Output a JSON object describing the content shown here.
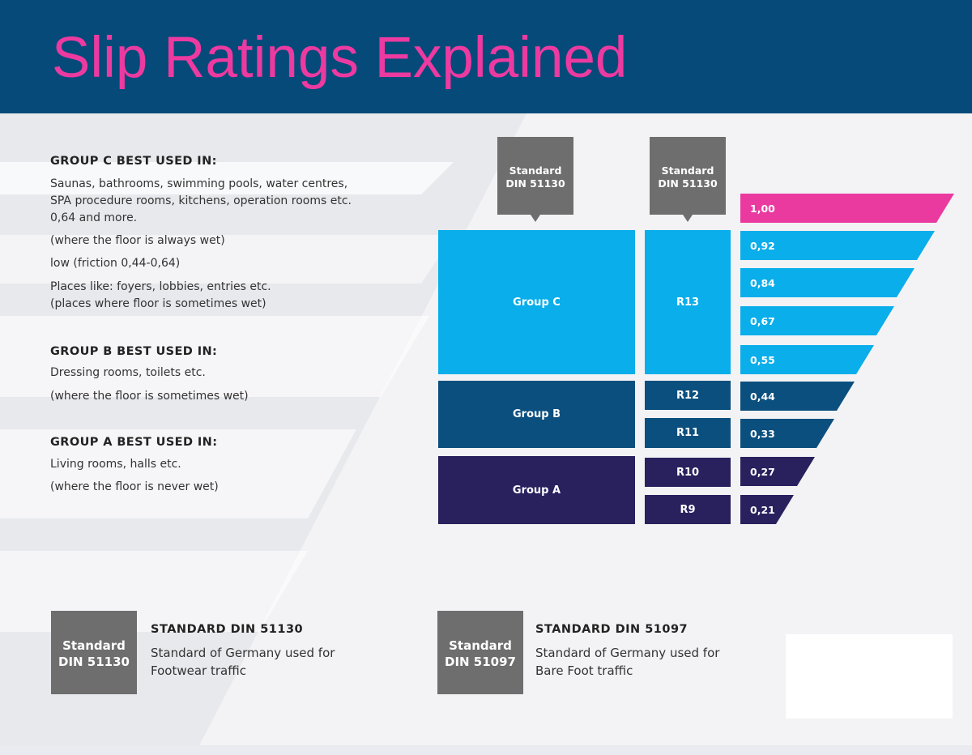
{
  "header": {
    "title": "Slip Ratings Explained"
  },
  "groups": {
    "c": {
      "title": "GROUP C BEST USED IN:",
      "lines": [
        "Saunas, bathrooms, swimming pools, water centres,",
        "SPA procedure rooms, kitchens, operation rooms etc.",
        "0,64 and more.",
        "(where the floor is always wet)",
        "low (friction 0,44-0,64)",
        "Places like: foyers, lobbies, entries etc.",
        "(places where floor is sometimes wet)"
      ]
    },
    "b": {
      "title": "GROUP B BEST USED IN:",
      "lines": [
        "Dressing rooms, toilets etc.",
        "(where the floor is sometimes wet)"
      ]
    },
    "a": {
      "title": "GROUP A BEST USED IN:",
      "lines": [
        "Living rooms, halls etc.",
        "(where the floor is never wet)"
      ]
    }
  },
  "diagram": {
    "tags": [
      {
        "line1": "Standard",
        "line2": "DIN 51130"
      },
      {
        "line1": "Standard",
        "line2": "DIN 51130"
      }
    ],
    "group_boxes": [
      "Group C",
      "Group B",
      "Group A"
    ],
    "r_ratings": [
      "R13",
      "R12",
      "R11",
      "R10",
      "R9"
    ],
    "friction_values": [
      "1,00",
      "0,92",
      "0,84",
      "0,67",
      "0,55",
      "0,44",
      "0,33",
      "0,27",
      "0,21"
    ]
  },
  "legend": [
    {
      "box_line1": "Standard",
      "box_line2": "DIN 51130",
      "title": "STANDARD DIN 51130",
      "desc1": "Standard of Germany used for",
      "desc2": "Footwear traffic"
    },
    {
      "box_line1": "Standard",
      "box_line2": "DIN 51097",
      "title": "STANDARD DIN 51097",
      "desc1": "Standard of Germany used for",
      "desc2": "Bare Foot traffic"
    }
  ],
  "colors": {
    "header_bg": "#064a7a",
    "title": "#ec3aa0",
    "light_blue": "#09aeea",
    "mid_blue": "#0b4f7e",
    "dark_navy": "#28215e",
    "pink": "#ea3aa0",
    "tag_gray": "#6e6e6e"
  }
}
